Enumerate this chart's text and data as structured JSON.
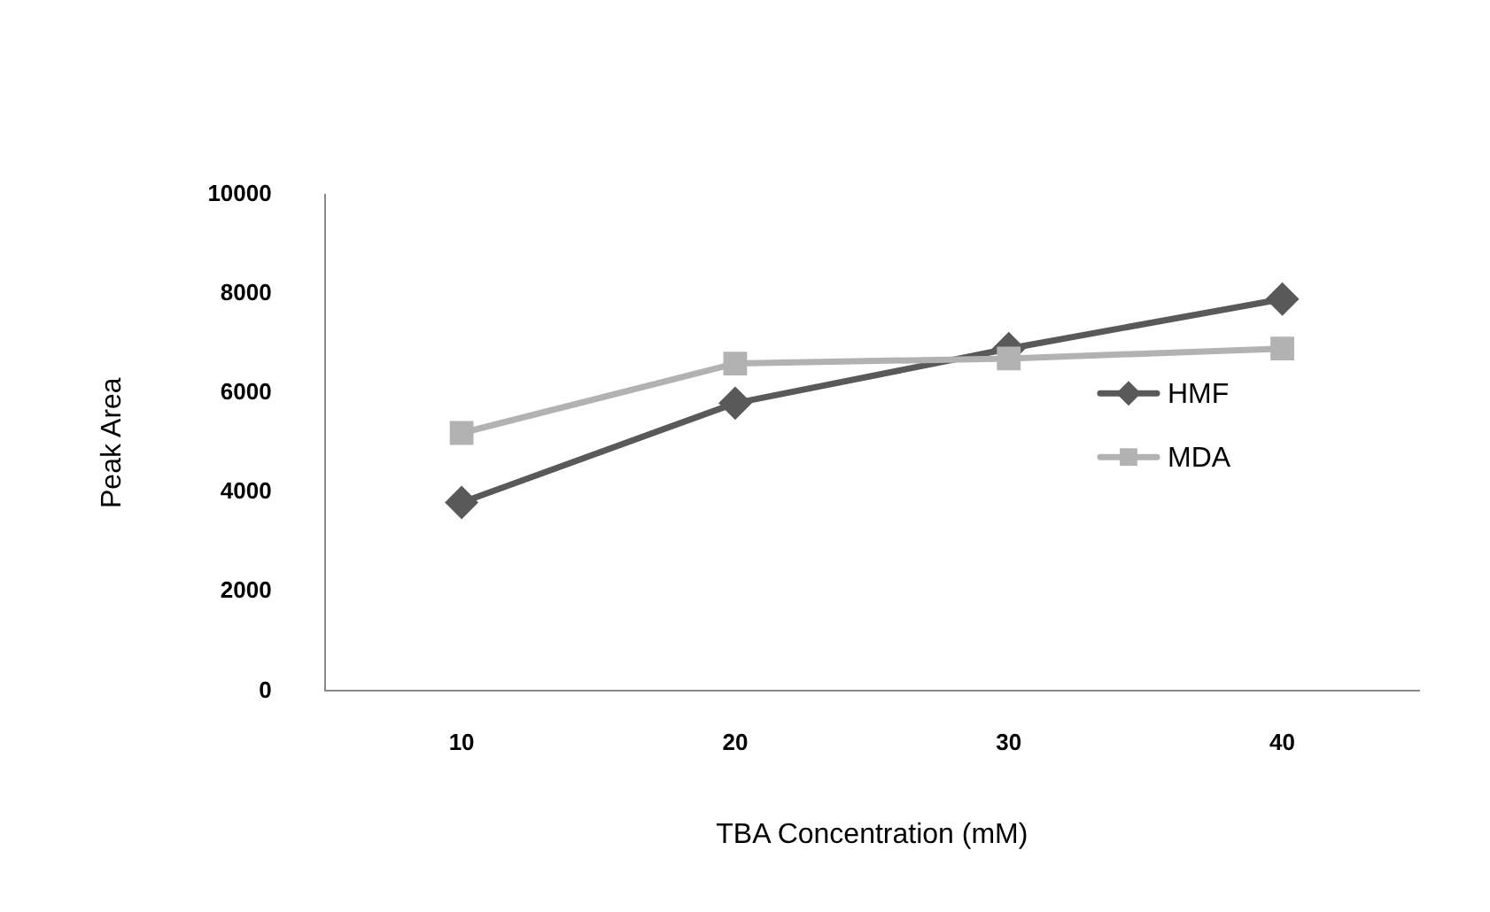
{
  "chart_data": {
    "type": "line",
    "xlabel": "TBA Concentration (mM)",
    "ylabel": "Peak Area",
    "categories": [
      "10",
      "20",
      "30",
      "40"
    ],
    "series": [
      {
        "name": "HMF",
        "color": "#595959",
        "marker": "diamond",
        "values": [
          3800,
          5800,
          6900,
          7900
        ]
      },
      {
        "name": "MDA",
        "color": "#b2b2b2",
        "marker": "square",
        "values": [
          5200,
          6600,
          6700,
          6900
        ]
      }
    ],
    "ylim": [
      0,
      10000
    ],
    "yticks": [
      0,
      2000,
      4000,
      6000,
      8000,
      10000
    ],
    "grid": false,
    "legend": "right",
    "line_style": "solid"
  }
}
